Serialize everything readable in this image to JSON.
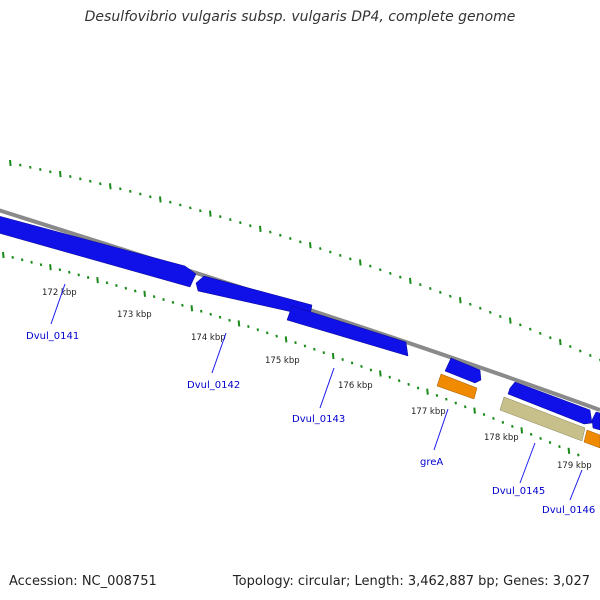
{
  "title": "Desulfovibrio vulgaris subsp. vulgaris DP4, complete genome",
  "footer": {
    "accession": "Accession: NC_008751",
    "summary": "Topology: circular; Length: 3,462,887 bp; Genes: 3,027"
  },
  "colors": {
    "forward_gene": "#1010e8",
    "cds_orange": "#f08a00",
    "cds_khaki": "#c8c08a",
    "backbone": "#8a8a8a",
    "tick": "#1a8a1a",
    "gene_label": "#0000cc"
  },
  "scale_labels": [
    "172 kbp",
    "173 kbp",
    "174 kbp",
    "175 kbp",
    "176 kbp",
    "177 kbp",
    "178 kbp",
    "179 kbp"
  ],
  "gene_labels": [
    "Dvul_0141",
    "Dvul_0142",
    "Dvul_0143",
    "greA",
    "Dvul_0145",
    "Dvul_0146"
  ]
}
